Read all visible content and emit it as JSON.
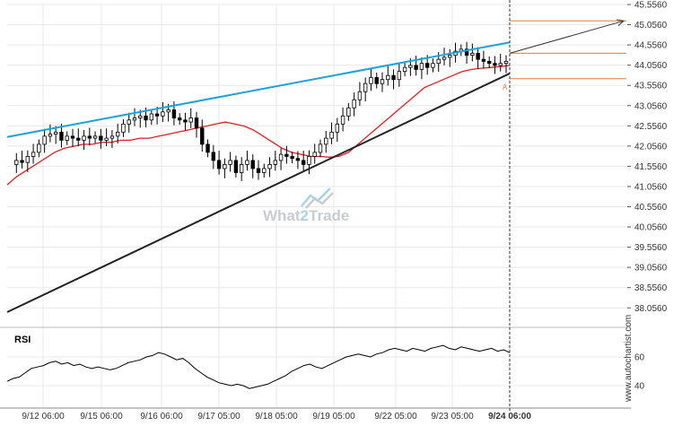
{
  "watermark": {
    "part1": "What",
    "part2": "2",
    "part3": "Trade"
  },
  "site": "www.autochartist.com",
  "rsi_title": "RSI",
  "colors": {
    "price": "#000000",
    "ma": "#e02020",
    "resistance": "#1aa3e0",
    "support": "#222222",
    "level": "#e08030",
    "grid": "#e8e8e8",
    "watermark": "#c8ccd0",
    "watermark_accent": "#a7d3ea"
  },
  "chart_data": [
    {
      "type": "candlestick",
      "title": "",
      "y_ticks": [
        "45.5560",
        "45.0560",
        "44.5560",
        "44.0560",
        "43.5560",
        "43.0560",
        "42.5560",
        "42.0560",
        "41.5560",
        "41.0560",
        "40.5560",
        "40.0560",
        "39.5560",
        "39.0560",
        "38.5560",
        "38.0560"
      ],
      "ylim": [
        37.8,
        45.556
      ],
      "x_ticks": [
        "9/12 06:00",
        "9/15 06:00",
        "9/16 06:00",
        "9/17 05:00",
        "9/18 05:00",
        "9/19 05:00",
        "9/22 05:00",
        "9/23 05:00",
        "9/24 06:00"
      ],
      "current_time_label": "9/24 06:00",
      "close_series": [
        41.6,
        41.7,
        41.65,
        41.8,
        41.9,
        42.1,
        42.3,
        42.35,
        42.4,
        42.2,
        42.3,
        42.25,
        42.2,
        42.3,
        42.25,
        42.3,
        42.2,
        42.25,
        42.3,
        42.4,
        42.6,
        42.7,
        42.75,
        42.8,
        42.7,
        42.85,
        42.8,
        42.9,
        42.95,
        42.75,
        42.7,
        42.65,
        42.75,
        42.5,
        42.1,
        41.9,
        41.7,
        41.5,
        41.6,
        41.7,
        41.4,
        41.6,
        41.7,
        41.5,
        41.4,
        41.5,
        41.6,
        41.7,
        41.85,
        41.8,
        41.75,
        41.7,
        41.6,
        41.8,
        41.9,
        42.1,
        42.25,
        42.4,
        42.6,
        42.8,
        43.0,
        43.2,
        43.4,
        43.6,
        43.75,
        43.6,
        43.7,
        43.8,
        43.7,
        43.9,
        44.0,
        44.05,
        43.95,
        44.1,
        44.0,
        44.1,
        44.2,
        44.25,
        44.3,
        44.4,
        44.45,
        44.3,
        44.35,
        44.2,
        44.15,
        44.1,
        44.05,
        44.1,
        44.15
      ],
      "moving_average": [
        41.1,
        41.3,
        41.45,
        41.6,
        41.75,
        41.9,
        42.0,
        42.05,
        42.1,
        42.1,
        42.15,
        42.15,
        42.2,
        42.2,
        42.25,
        42.25,
        42.3,
        42.35,
        42.4,
        42.45,
        42.5,
        42.55,
        42.6,
        42.65,
        42.6,
        42.55,
        42.45,
        42.3,
        42.15,
        42.0,
        41.9,
        41.85,
        41.8,
        41.8,
        41.78,
        41.8,
        41.9,
        42.1,
        42.3,
        42.5,
        42.7,
        42.9,
        43.1,
        43.3,
        43.5,
        43.6,
        43.7,
        43.8,
        43.9,
        43.95,
        43.98,
        44.0,
        44.02,
        44.05
      ],
      "resistance_line": {
        "start": 42.28,
        "end": 44.62
      },
      "support_line": {
        "start": 37.95,
        "end": 43.85
      },
      "levels": [
        45.15,
        44.35,
        43.72
      ],
      "forecast_arrow": {
        "start": 44.35,
        "end": 45.15
      },
      "pattern_label": "A"
    },
    {
      "type": "line",
      "title": "RSI",
      "y_ticks": [
        "60",
        "40"
      ],
      "ylim": [
        30,
        80
      ],
      "values": [
        43,
        45,
        46,
        49,
        52,
        53,
        54,
        56,
        57,
        55,
        56,
        54,
        55,
        53,
        52,
        53,
        52,
        51,
        52,
        54,
        56,
        57,
        58,
        60,
        61,
        63,
        62,
        60,
        58,
        59,
        56,
        52,
        49,
        46,
        44,
        42,
        41,
        40,
        41,
        40,
        38,
        39,
        40,
        41,
        43,
        45,
        47,
        50,
        52,
        54,
        55,
        53,
        52,
        54,
        56,
        58,
        60,
        61,
        62,
        61,
        60,
        62,
        63,
        65,
        66,
        65,
        64,
        66,
        65,
        64,
        66,
        67,
        68,
        66,
        65,
        67,
        66,
        65,
        64,
        65,
        66,
        64,
        65,
        63
      ],
      "grid": true
    }
  ]
}
